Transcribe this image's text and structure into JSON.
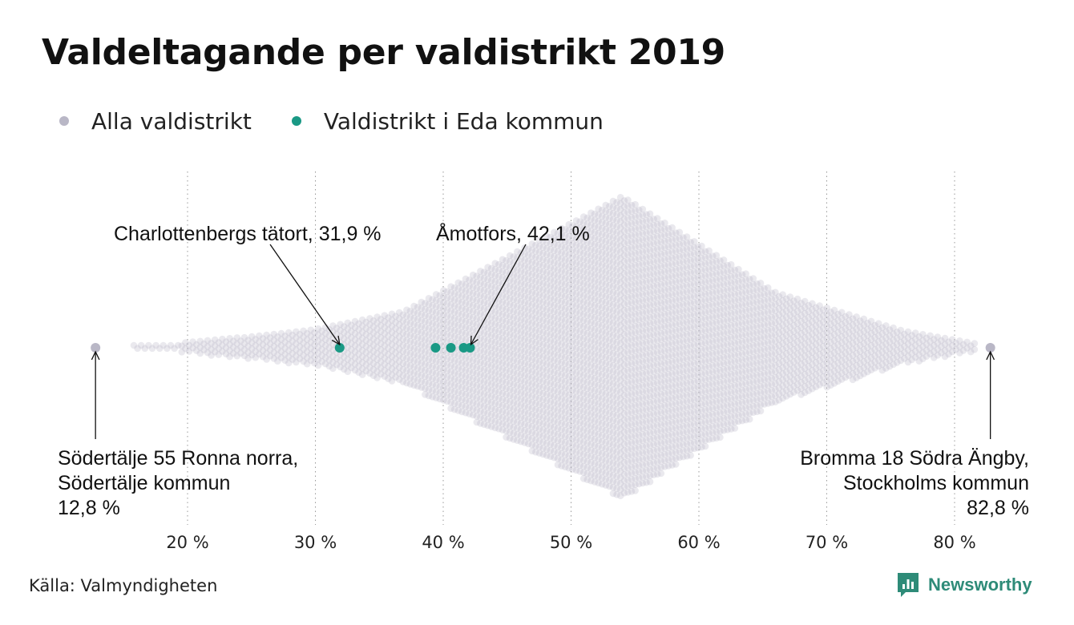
{
  "title": "Valdeltagande per valdistrikt 2019",
  "legend": [
    {
      "label": "Alla valdistrikt",
      "color": "#b9b7c6"
    },
    {
      "label": "Valdistrikt i Eda kommun",
      "color": "#1a9985"
    }
  ],
  "source": "Källa: Valmyndigheten",
  "brand": "Newsworthy",
  "chart_data": {
    "type": "scatter",
    "subtype": "beeswarm",
    "xlim": [
      11,
      86
    ],
    "x_ticks": [
      20,
      30,
      40,
      50,
      60,
      70,
      80
    ],
    "x_tick_labels": [
      "20 %",
      "30 %",
      "40 %",
      "50 %",
      "60 %",
      "70 %",
      "80 %"
    ],
    "grid": "vertical dotted",
    "series": [
      {
        "name": "Alla valdistrikt",
        "color": "#b9b7c6",
        "distribution": "dense beeswarm of all districts, roughly 16–82 %, peak near 54 %",
        "extremes": [
          12.8,
          82.8
        ]
      },
      {
        "name": "Valdistrikt i Eda kommun",
        "color": "#1a9985",
        "values": [
          31.9,
          39.4,
          40.6,
          41.6,
          42.1
        ]
      }
    ],
    "annotations": [
      {
        "lines": [
          "Charlottenbergs tätort, 31,9 %"
        ],
        "x": 31.9
      },
      {
        "lines": [
          "Åmotfors, 42,1 %"
        ],
        "x": 42.1
      },
      {
        "lines": [
          "Södertälje 55 Ronna norra,",
          "Södertälje kommun",
          "12,8 %"
        ],
        "x": 12.8
      },
      {
        "lines": [
          "Bromma 18 Södra Ängby,",
          "Stockholms kommun",
          "82,8 %"
        ],
        "x": 82.8
      }
    ]
  }
}
